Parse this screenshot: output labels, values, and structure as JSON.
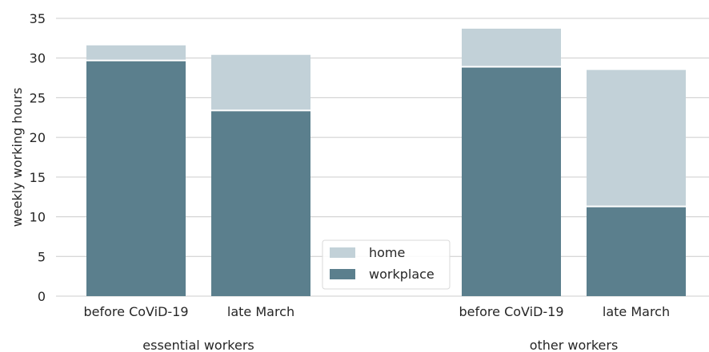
{
  "chart_data": {
    "type": "bar",
    "stacked": true,
    "ylabel": "weekly working hours",
    "ylim": [
      0,
      35
    ],
    "yticks": [
      0,
      5,
      10,
      15,
      20,
      25,
      30,
      35
    ],
    "grid": "horizontal",
    "legend_placement": "bottom-center",
    "groups": [
      {
        "name": "essential workers",
        "categories": [
          "before CoViD-19",
          "late March"
        ]
      },
      {
        "name": "other workers",
        "categories": [
          "before CoViD-19",
          "late March"
        ]
      }
    ],
    "categories": [
      "before CoViD-19",
      "late March",
      "before CoViD-19",
      "late March"
    ],
    "series": [
      {
        "name": "workplace",
        "color": "#5b7f8d",
        "values": [
          29.7,
          23.4,
          28.9,
          11.3
        ]
      },
      {
        "name": "home",
        "color": "#c2d1d8",
        "values": [
          1.9,
          7.0,
          4.8,
          17.2
        ]
      }
    ],
    "legend": [
      "home",
      "workplace"
    ]
  }
}
